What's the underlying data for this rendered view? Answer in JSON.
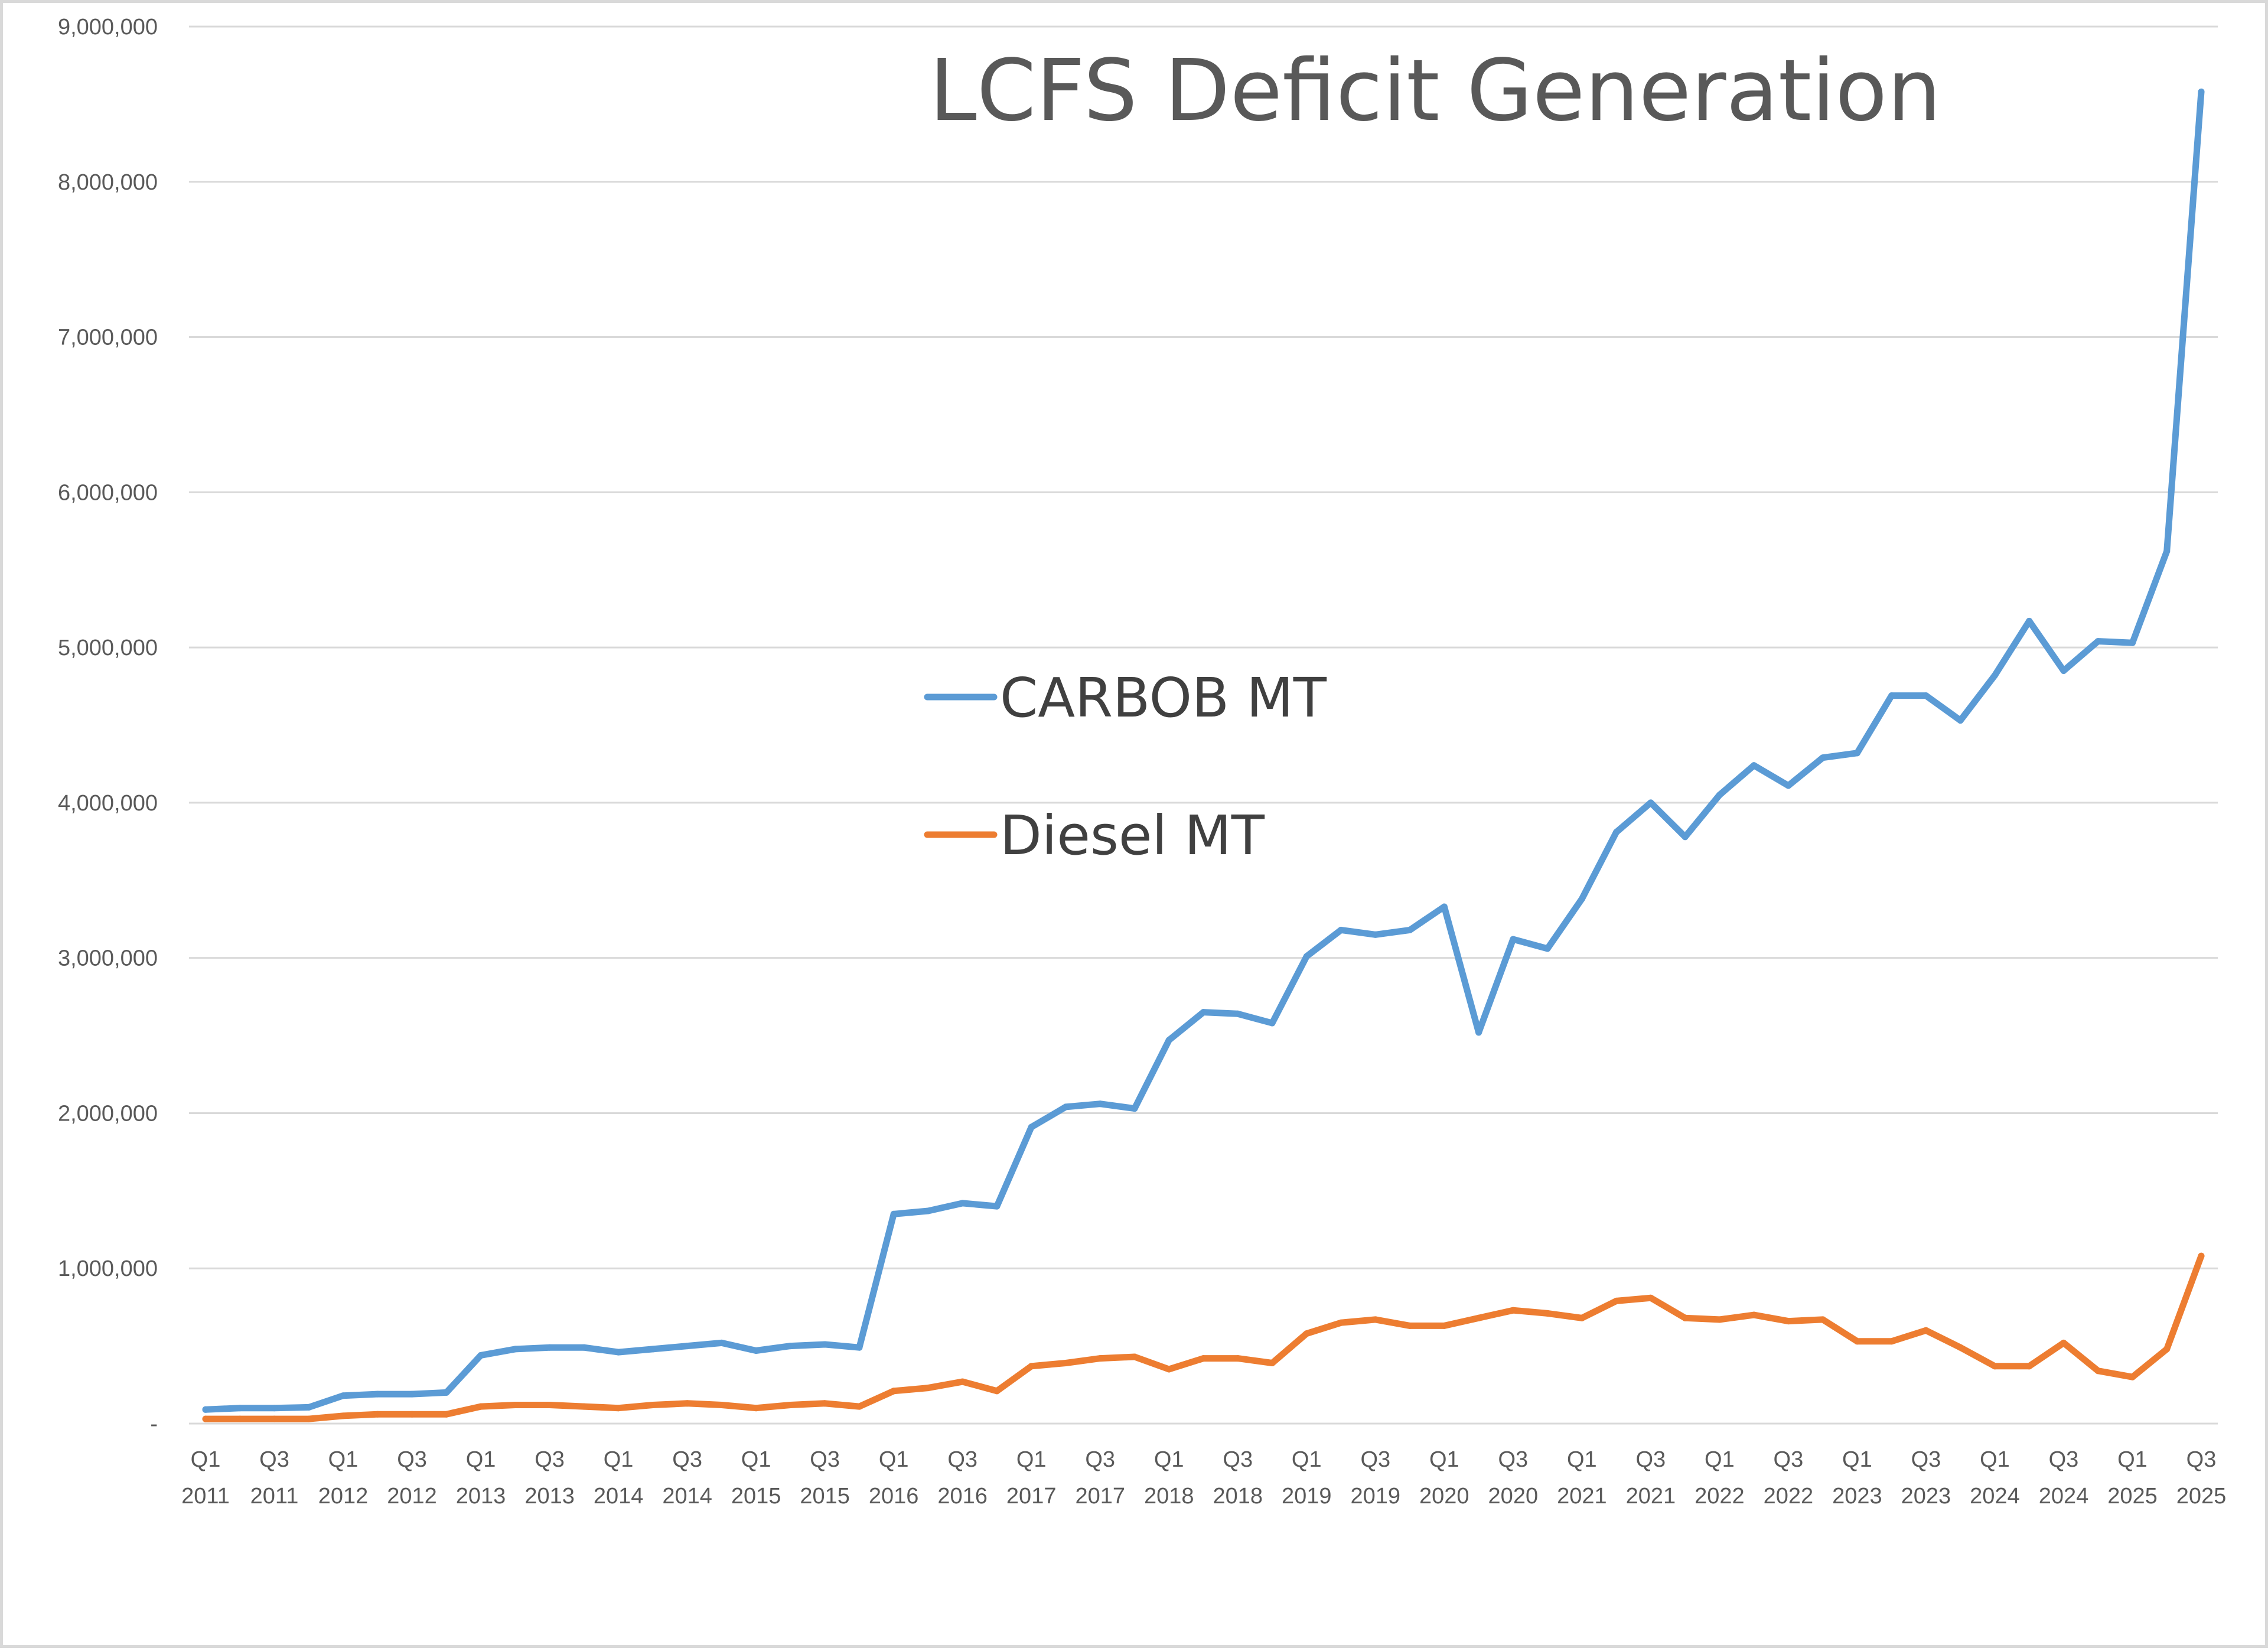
{
  "chart_data": {
    "type": "line",
    "title": "LCFS Deficit Generation",
    "xlabel": "",
    "ylabel": "",
    "ylim": [
      0,
      9000000
    ],
    "yticks": [
      {
        "value": 0,
        "label": "-"
      },
      {
        "value": 1000000,
        "label": "1,000,000"
      },
      {
        "value": 2000000,
        "label": "2,000,000"
      },
      {
        "value": 3000000,
        "label": "3,000,000"
      },
      {
        "value": 4000000,
        "label": "4,000,000"
      },
      {
        "value": 5000000,
        "label": "5,000,000"
      },
      {
        "value": 6000000,
        "label": "6,000,000"
      },
      {
        "value": 7000000,
        "label": "7,000,000"
      },
      {
        "value": 8000000,
        "label": "8,000,000"
      },
      {
        "value": 9000000,
        "label": "9,000,000"
      }
    ],
    "grid": true,
    "legend_position": "center",
    "categories": [
      "Q1 2011",
      "Q2 2011",
      "Q3 2011",
      "Q4 2011",
      "Q1 2012",
      "Q2 2012",
      "Q3 2012",
      "Q4 2012",
      "Q1 2013",
      "Q2 2013",
      "Q3 2013",
      "Q4 2013",
      "Q1 2014",
      "Q2 2014",
      "Q3 2014",
      "Q4 2014",
      "Q1 2015",
      "Q2 2015",
      "Q3 2015",
      "Q4 2015",
      "Q1 2016",
      "Q2 2016",
      "Q3 2016",
      "Q4 2016",
      "Q1 2017",
      "Q2 2017",
      "Q3 2017",
      "Q4 2017",
      "Q1 2018",
      "Q2 2018",
      "Q3 2018",
      "Q4 2018",
      "Q1 2019",
      "Q2 2019",
      "Q3 2019",
      "Q4 2019",
      "Q1 2020",
      "Q2 2020",
      "Q3 2020",
      "Q4 2020",
      "Q1 2021",
      "Q2 2021",
      "Q3 2021",
      "Q4 2021",
      "Q1 2022",
      "Q2 2022",
      "Q3 2022",
      "Q4 2022",
      "Q1 2023",
      "Q2 2023",
      "Q3 2023",
      "Q4 2023",
      "Q1 2024",
      "Q2 2024",
      "Q3 2024",
      "Q4 2024",
      "Q1 2025",
      "Q2 2025",
      "Q3 2025"
    ],
    "xtick_labels": [
      {
        "index": 0,
        "line1": "Q1",
        "line2": "2011"
      },
      {
        "index": 2,
        "line1": "Q3",
        "line2": "2011"
      },
      {
        "index": 4,
        "line1": "Q1",
        "line2": "2012"
      },
      {
        "index": 6,
        "line1": "Q3",
        "line2": "2012"
      },
      {
        "index": 8,
        "line1": "Q1",
        "line2": "2013"
      },
      {
        "index": 10,
        "line1": "Q3",
        "line2": "2013"
      },
      {
        "index": 12,
        "line1": "Q1",
        "line2": "2014"
      },
      {
        "index": 14,
        "line1": "Q3",
        "line2": "2014"
      },
      {
        "index": 16,
        "line1": "Q1",
        "line2": "2015"
      },
      {
        "index": 18,
        "line1": "Q3",
        "line2": "2015"
      },
      {
        "index": 20,
        "line1": "Q1",
        "line2": "2016"
      },
      {
        "index": 22,
        "line1": "Q3",
        "line2": "2016"
      },
      {
        "index": 24,
        "line1": "Q1",
        "line2": "2017"
      },
      {
        "index": 26,
        "line1": "Q3",
        "line2": "2017"
      },
      {
        "index": 28,
        "line1": "Q1",
        "line2": "2018"
      },
      {
        "index": 30,
        "line1": "Q3",
        "line2": "2018"
      },
      {
        "index": 32,
        "line1": "Q1",
        "line2": "2019"
      },
      {
        "index": 34,
        "line1": "Q3",
        "line2": "2019"
      },
      {
        "index": 36,
        "line1": "Q1",
        "line2": "2020"
      },
      {
        "index": 38,
        "line1": "Q3",
        "line2": "2020"
      },
      {
        "index": 40,
        "line1": "Q1",
        "line2": "2021"
      },
      {
        "index": 42,
        "line1": "Q3",
        "line2": "2021"
      },
      {
        "index": 44,
        "line1": "Q1",
        "line2": "2022"
      },
      {
        "index": 46,
        "line1": "Q3",
        "line2": "2022"
      },
      {
        "index": 48,
        "line1": "Q1",
        "line2": "2023"
      },
      {
        "index": 50,
        "line1": "Q3",
        "line2": "2023"
      },
      {
        "index": 52,
        "line1": "Q1",
        "line2": "2024"
      },
      {
        "index": 54,
        "line1": "Q3",
        "line2": "2024"
      },
      {
        "index": 56,
        "line1": "Q1",
        "line2": "2025"
      },
      {
        "index": 58,
        "line1": "Q3",
        "line2": "2025"
      }
    ],
    "series": [
      {
        "name": "CARBOB MT",
        "color": "#5b9bd5",
        "values": [
          90000,
          100000,
          100000,
          105000,
          180000,
          190000,
          190000,
          200000,
          440000,
          480000,
          490000,
          490000,
          460000,
          480000,
          500000,
          520000,
          470000,
          500000,
          510000,
          490000,
          1350000,
          1370000,
          1420000,
          1400000,
          1910000,
          2040000,
          2060000,
          2030000,
          2470000,
          2650000,
          2640000,
          2580000,
          3010000,
          3180000,
          3150000,
          3180000,
          3330000,
          2520000,
          3120000,
          3060000,
          3380000,
          3810000,
          4000000,
          3780000,
          4050000,
          4240000,
          4110000,
          4290000,
          4320000,
          4690000,
          4690000,
          4530000,
          4820000,
          5170000,
          4850000,
          5040000,
          5030000,
          5620000,
          8580000
        ]
      },
      {
        "name": "Diesel MT",
        "color": "#ed7d31",
        "values": [
          30000,
          30000,
          30000,
          30000,
          50000,
          60000,
          60000,
          60000,
          110000,
          120000,
          120000,
          110000,
          100000,
          120000,
          130000,
          120000,
          100000,
          120000,
          130000,
          110000,
          210000,
          230000,
          270000,
          210000,
          370000,
          390000,
          420000,
          430000,
          350000,
          420000,
          420000,
          390000,
          580000,
          650000,
          670000,
          630000,
          630000,
          680000,
          730000,
          710000,
          680000,
          790000,
          810000,
          680000,
          670000,
          700000,
          660000,
          670000,
          530000,
          530000,
          600000,
          490000,
          370000,
          370000,
          520000,
          340000,
          300000,
          480000,
          1080000
        ]
      }
    ]
  }
}
